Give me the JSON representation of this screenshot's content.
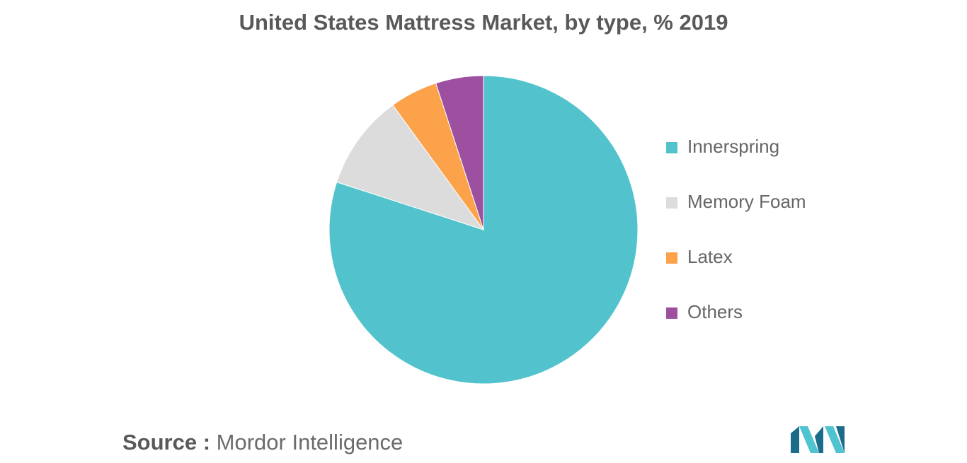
{
  "colors": {
    "innerspring": "#52c3cc",
    "memory_foam": "#dcdcdc",
    "latex": "#fba24a",
    "others": "#9d50a0",
    "logo_dark": "#1b6c8a",
    "logo_light": "#4fc3d0"
  },
  "chart_data": {
    "type": "pie",
    "title": "United States Mattress Market, by type, % 2019",
    "legend_position": "right",
    "start_angle_note": "clockwise from 12 o'clock",
    "slices": [
      {
        "label": "Innerspring",
        "value": 80
      },
      {
        "label": "Memory Foam",
        "value": 10
      },
      {
        "label": "Latex",
        "value": 5
      },
      {
        "label": "Others",
        "value": 5
      }
    ]
  },
  "source": {
    "label": "Source :",
    "text": "Mordor Intelligence"
  },
  "logo": {
    "icon": "mordor-intelligence-logo"
  }
}
